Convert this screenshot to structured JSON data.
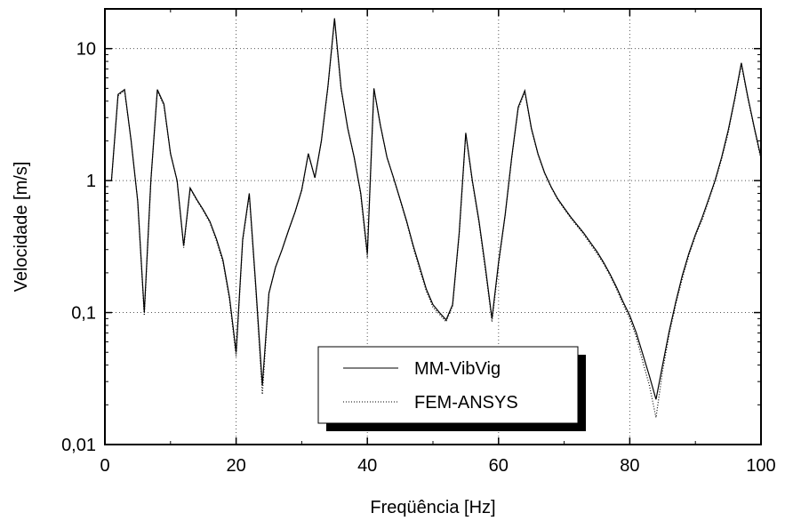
{
  "chart_data": {
    "type": "line",
    "title": "",
    "xlabel": "Freqüência [Hz]",
    "ylabel": "Velocidade [m/s]",
    "xlim": [
      0,
      100
    ],
    "ylim": [
      0.01,
      20
    ],
    "y_scale": "log",
    "grid": true,
    "legend_position": "bottom-center",
    "x_ticks": [
      0,
      20,
      40,
      60,
      80,
      100
    ],
    "x_tick_labels": [
      "0",
      "20",
      "40",
      "60",
      "80",
      "100"
    ],
    "y_ticks": [
      0.01,
      0.1,
      1,
      10
    ],
    "y_tick_labels": [
      "0,01",
      "0,1",
      "1",
      "10"
    ],
    "series": [
      {
        "name": "MM-VibVig",
        "line_style": "solid",
        "color": "#000000",
        "x": [
          1,
          2,
          3,
          4,
          5,
          6,
          7,
          8,
          9,
          10,
          11,
          12,
          13,
          14,
          15,
          16,
          17,
          18,
          19,
          20,
          21,
          22,
          23,
          24,
          25,
          26,
          27,
          28,
          29,
          30,
          31,
          32,
          33,
          34,
          35,
          36,
          37,
          38,
          39,
          40,
          41,
          42,
          43,
          44,
          45,
          46,
          47,
          48,
          49,
          50,
          51,
          52,
          53,
          54,
          55,
          56,
          57,
          58,
          59,
          60,
          61,
          62,
          63,
          64,
          65,
          66,
          67,
          68,
          69,
          70,
          71,
          72,
          73,
          74,
          75,
          76,
          77,
          78,
          79,
          80,
          81,
          82,
          83,
          84,
          85,
          86,
          87,
          88,
          89,
          90,
          91,
          92,
          93,
          94,
          95,
          96,
          97,
          98,
          99,
          100
        ],
        "y": [
          1.0,
          4.5,
          4.9,
          2.0,
          0.7,
          0.1,
          1.0,
          4.9,
          3.8,
          1.6,
          1.0,
          0.32,
          0.88,
          0.72,
          0.6,
          0.49,
          0.36,
          0.25,
          0.13,
          0.05,
          0.36,
          0.8,
          0.16,
          0.028,
          0.14,
          0.22,
          0.3,
          0.42,
          0.58,
          0.85,
          1.6,
          1.05,
          2.0,
          5.2,
          17.0,
          5.0,
          2.5,
          1.5,
          0.8,
          0.28,
          5.0,
          2.6,
          1.5,
          1.05,
          0.72,
          0.49,
          0.32,
          0.22,
          0.15,
          0.115,
          0.1,
          0.088,
          0.115,
          0.4,
          2.3,
          1.0,
          0.5,
          0.22,
          0.09,
          0.24,
          0.55,
          1.5,
          3.6,
          4.8,
          2.5,
          1.6,
          1.15,
          0.9,
          0.73,
          0.62,
          0.53,
          0.46,
          0.4,
          0.34,
          0.29,
          0.24,
          0.195,
          0.155,
          0.12,
          0.095,
          0.07,
          0.048,
          0.033,
          0.022,
          0.04,
          0.072,
          0.12,
          0.19,
          0.28,
          0.39,
          0.52,
          0.72,
          1.0,
          1.5,
          2.4,
          4.2,
          7.8,
          4.3,
          2.5,
          1.5
        ]
      },
      {
        "name": "FEM-ANSYS",
        "line_style": "dotted",
        "color": "#000000",
        "x": [
          1,
          2,
          3,
          4,
          5,
          6,
          7,
          8,
          9,
          10,
          11,
          12,
          13,
          14,
          15,
          16,
          17,
          18,
          19,
          20,
          21,
          22,
          23,
          24,
          25,
          26,
          27,
          28,
          29,
          30,
          31,
          32,
          33,
          34,
          35,
          36,
          37,
          38,
          39,
          40,
          41,
          42,
          43,
          44,
          45,
          46,
          47,
          48,
          49,
          50,
          51,
          52,
          53,
          54,
          55,
          56,
          57,
          58,
          59,
          60,
          61,
          62,
          63,
          64,
          65,
          66,
          67,
          68,
          69,
          70,
          71,
          72,
          73,
          74,
          75,
          76,
          77,
          78,
          79,
          80,
          81,
          82,
          83,
          84,
          85,
          86,
          87,
          88,
          89,
          90,
          91,
          92,
          93,
          94,
          95,
          96,
          97,
          98,
          99,
          100
        ],
        "y": [
          1.0,
          4.4,
          4.8,
          2.0,
          0.7,
          0.095,
          1.0,
          4.8,
          3.7,
          1.6,
          1.0,
          0.31,
          0.87,
          0.71,
          0.59,
          0.48,
          0.35,
          0.24,
          0.125,
          0.046,
          0.35,
          0.78,
          0.15,
          0.024,
          0.14,
          0.22,
          0.3,
          0.42,
          0.58,
          0.84,
          1.6,
          1.05,
          2.0,
          5.1,
          16.5,
          4.9,
          2.5,
          1.5,
          0.78,
          0.26,
          4.9,
          2.6,
          1.5,
          1.04,
          0.71,
          0.48,
          0.31,
          0.21,
          0.145,
          0.11,
          0.097,
          0.085,
          0.112,
          0.39,
          2.25,
          0.98,
          0.48,
          0.21,
          0.085,
          0.23,
          0.54,
          1.48,
          3.5,
          4.7,
          2.45,
          1.58,
          1.14,
          0.89,
          0.72,
          0.61,
          0.52,
          0.45,
          0.39,
          0.33,
          0.28,
          0.235,
          0.19,
          0.15,
          0.115,
          0.09,
          0.065,
          0.042,
          0.028,
          0.016,
          0.036,
          0.068,
          0.115,
          0.18,
          0.27,
          0.38,
          0.5,
          0.7,
          0.98,
          1.45,
          2.3,
          4.1,
          7.5,
          4.2,
          2.45,
          1.45
        ]
      }
    ],
    "legend": {
      "entries": [
        "MM-VibVig",
        "FEM-ANSYS"
      ]
    }
  }
}
